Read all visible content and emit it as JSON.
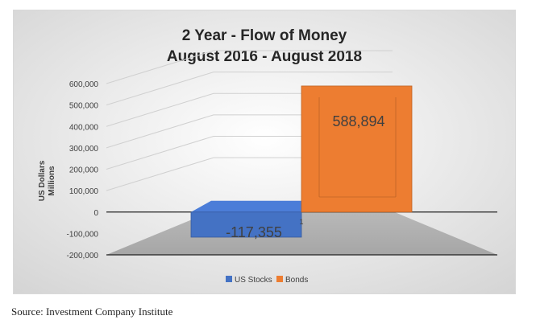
{
  "chart_data": {
    "type": "bar",
    "title_line1": "2 Year - Flow of Money",
    "title_line2": "August 2016 - August 2018",
    "ylabel_line1": "US Dollars",
    "ylabel_line2": "Millions",
    "categories": [
      "1"
    ],
    "series": [
      {
        "name": "US Stocks",
        "values": [
          -117355
        ],
        "color": "#4472c4",
        "label": "-117,355"
      },
      {
        "name": "Bonds",
        "values": [
          588894
        ],
        "color": "#ed7d31",
        "label": "588,894"
      }
    ],
    "yticks": [
      "600,000",
      "500,000",
      "400,000",
      "300,000",
      "200,000",
      "100,000",
      "0",
      "-100,000",
      "-200,000"
    ],
    "ylim": [
      -200000,
      600000
    ],
    "grid": true,
    "legend_position": "bottom",
    "style": "3d-column",
    "background": "gradient-gray"
  },
  "source": "Source: Investment Company Institute"
}
